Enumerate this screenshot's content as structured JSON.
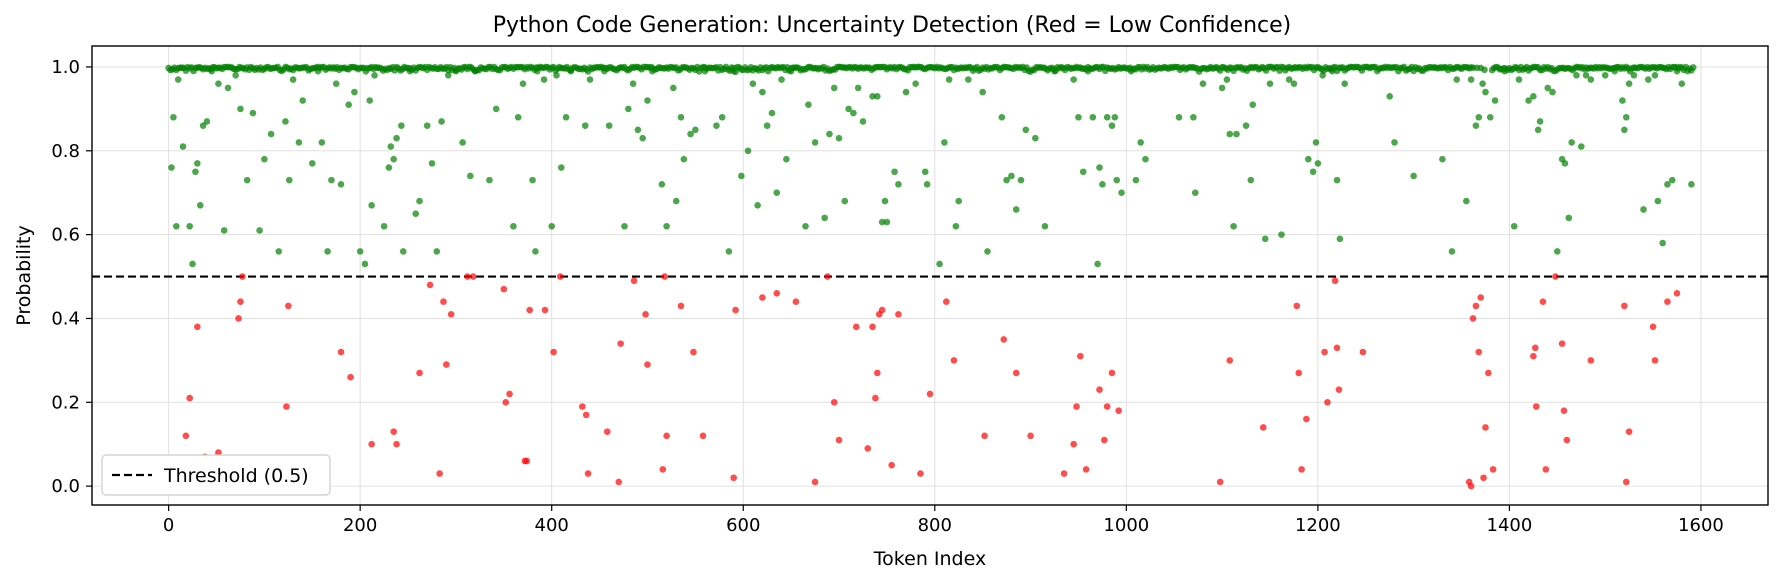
{
  "chart_data": {
    "type": "scatter",
    "title": "Python Code Generation: Uncertainty Detection (Red = Low Confidence)",
    "xlabel": "Token Index",
    "ylabel": "Probability",
    "xlim": [
      -80,
      1670
    ],
    "ylim": [
      -0.045,
      1.05
    ],
    "x_ticks": [
      0,
      200,
      400,
      600,
      800,
      1000,
      1200,
      1400,
      1600
    ],
    "y_ticks": [
      0.0,
      0.2,
      0.4,
      0.6,
      0.8,
      1.0
    ],
    "grid": true,
    "legend_position": "lower-left",
    "threshold": {
      "value": 0.5,
      "label": "Threshold (0.5)",
      "color": "#000000",
      "style": "dashed"
    },
    "colors": {
      "high_confidence": "#008000",
      "low_confidence": "#ff0000"
    },
    "n_tokens": 1593,
    "high_confidence_points": [
      [
        3,
        0.76
      ],
      [
        5,
        0.88
      ],
      [
        8,
        0.62
      ],
      [
        10,
        0.97
      ],
      [
        15,
        0.81
      ],
      [
        22,
        0.62
      ],
      [
        25,
        0.53
      ],
      [
        28,
        0.75
      ],
      [
        30,
        0.77
      ],
      [
        33,
        0.67
      ],
      [
        36,
        0.86
      ],
      [
        40,
        0.87
      ],
      [
        45,
        0.99
      ],
      [
        52,
        0.96
      ],
      [
        58,
        0.61
      ],
      [
        62,
        0.95
      ],
      [
        70,
        0.98
      ],
      [
        75,
        0.9
      ],
      [
        82,
        0.73
      ],
      [
        88,
        0.89
      ],
      [
        95,
        0.61
      ],
      [
        100,
        0.78
      ],
      [
        107,
        0.84
      ],
      [
        115,
        0.56
      ],
      [
        122,
        0.87
      ],
      [
        126,
        0.73
      ],
      [
        130,
        0.97
      ],
      [
        136,
        0.82
      ],
      [
        140,
        0.92
      ],
      [
        150,
        0.77
      ],
      [
        156,
        0.99
      ],
      [
        160,
        0.82
      ],
      [
        166,
        0.56
      ],
      [
        170,
        0.73
      ],
      [
        175,
        0.96
      ],
      [
        180,
        0.72
      ],
      [
        188,
        0.91
      ],
      [
        194,
        0.94
      ],
      [
        200,
        0.56
      ],
      [
        205,
        0.53
      ],
      [
        210,
        0.92
      ],
      [
        212,
        0.67
      ],
      [
        215,
        0.98
      ],
      [
        225,
        0.62
      ],
      [
        230,
        0.76
      ],
      [
        232,
        0.81
      ],
      [
        235,
        0.78
      ],
      [
        238,
        0.83
      ],
      [
        243,
        0.86
      ],
      [
        245,
        0.56
      ],
      [
        252,
        0.99
      ],
      [
        258,
        0.65
      ],
      [
        262,
        0.68
      ],
      [
        270,
        0.86
      ],
      [
        275,
        0.77
      ],
      [
        280,
        0.56
      ],
      [
        285,
        0.87
      ],
      [
        292,
        0.98
      ],
      [
        300,
        0.99
      ],
      [
        307,
        0.82
      ],
      [
        315,
        0.74
      ],
      [
        320,
        0.99
      ],
      [
        335,
        0.73
      ],
      [
        342,
        0.9
      ],
      [
        360,
        0.62
      ],
      [
        365,
        0.88
      ],
      [
        370,
        0.96
      ],
      [
        380,
        0.73
      ],
      [
        383,
        0.56
      ],
      [
        385,
        0.99
      ],
      [
        392,
        0.97
      ],
      [
        400,
        0.62
      ],
      [
        405,
        0.98
      ],
      [
        410,
        0.76
      ],
      [
        415,
        0.88
      ],
      [
        420,
        0.99
      ],
      [
        435,
        0.86
      ],
      [
        440,
        0.97
      ],
      [
        455,
        0.99
      ],
      [
        460,
        0.86
      ],
      [
        476,
        0.62
      ],
      [
        480,
        0.9
      ],
      [
        485,
        0.96
      ],
      [
        490,
        0.85
      ],
      [
        495,
        0.83
      ],
      [
        500,
        0.92
      ],
      [
        505,
        0.99
      ],
      [
        515,
        0.72
      ],
      [
        520,
        0.62
      ],
      [
        527,
        0.95
      ],
      [
        530,
        0.68
      ],
      [
        535,
        0.88
      ],
      [
        538,
        0.78
      ],
      [
        545,
        0.84
      ],
      [
        550,
        0.85
      ],
      [
        560,
        0.99
      ],
      [
        572,
        0.86
      ],
      [
        578,
        0.88
      ],
      [
        585,
        0.56
      ],
      [
        590,
        0.99
      ],
      [
        598,
        0.74
      ],
      [
        605,
        0.8
      ],
      [
        610,
        0.96
      ],
      [
        615,
        0.67
      ],
      [
        620,
        0.94
      ],
      [
        625,
        0.86
      ],
      [
        630,
        0.89
      ],
      [
        635,
        0.7
      ],
      [
        640,
        0.97
      ],
      [
        645,
        0.78
      ],
      [
        650,
        0.99
      ],
      [
        665,
        0.62
      ],
      [
        668,
        0.91
      ],
      [
        675,
        0.82
      ],
      [
        685,
        0.64
      ],
      [
        690,
        0.84
      ],
      [
        695,
        0.95
      ],
      [
        700,
        0.83
      ],
      [
        706,
        0.68
      ],
      [
        710,
        0.9
      ],
      [
        715,
        0.89
      ],
      [
        720,
        0.95
      ],
      [
        725,
        0.87
      ],
      [
        735,
        0.93
      ],
      [
        740,
        0.93
      ],
      [
        745,
        0.63
      ],
      [
        748,
        0.68
      ],
      [
        750,
        0.63
      ],
      [
        758,
        0.75
      ],
      [
        762,
        0.72
      ],
      [
        770,
        0.94
      ],
      [
        780,
        0.96
      ],
      [
        790,
        0.75
      ],
      [
        792,
        0.72
      ],
      [
        805,
        0.53
      ],
      [
        810,
        0.82
      ],
      [
        815,
        0.97
      ],
      [
        822,
        0.62
      ],
      [
        825,
        0.68
      ],
      [
        835,
        0.97
      ],
      [
        850,
        0.94
      ],
      [
        855,
        0.56
      ],
      [
        870,
        0.88
      ],
      [
        875,
        0.73
      ],
      [
        880,
        0.74
      ],
      [
        885,
        0.66
      ],
      [
        890,
        0.73
      ],
      [
        895,
        0.85
      ],
      [
        905,
        0.83
      ],
      [
        915,
        0.62
      ],
      [
        925,
        0.99
      ],
      [
        945,
        0.97
      ],
      [
        950,
        0.88
      ],
      [
        955,
        0.75
      ],
      [
        960,
        0.99
      ],
      [
        965,
        0.88
      ],
      [
        970,
        0.53
      ],
      [
        972,
        0.76
      ],
      [
        975,
        0.72
      ],
      [
        980,
        0.88
      ],
      [
        985,
        0.86
      ],
      [
        988,
        0.88
      ],
      [
        990,
        0.73
      ],
      [
        995,
        0.7
      ],
      [
        1005,
        0.99
      ],
      [
        1010,
        0.73
      ],
      [
        1015,
        0.82
      ],
      [
        1020,
        0.78
      ],
      [
        1055,
        0.88
      ],
      [
        1070,
        0.88
      ],
      [
        1072,
        0.7
      ],
      [
        1080,
        0.96
      ],
      [
        1100,
        0.95
      ],
      [
        1105,
        0.97
      ],
      [
        1108,
        0.84
      ],
      [
        1112,
        0.62
      ],
      [
        1115,
        0.84
      ],
      [
        1125,
        0.86
      ],
      [
        1130,
        0.73
      ],
      [
        1132,
        0.91
      ],
      [
        1145,
        0.59
      ],
      [
        1150,
        0.96
      ],
      [
        1162,
        0.6
      ],
      [
        1170,
        0.97
      ],
      [
        1175,
        0.96
      ],
      [
        1190,
        0.78
      ],
      [
        1195,
        0.75
      ],
      [
        1198,
        0.82
      ],
      [
        1200,
        0.77
      ],
      [
        1205,
        0.98
      ],
      [
        1215,
        0.99
      ],
      [
        1220,
        0.73
      ],
      [
        1223,
        0.59
      ],
      [
        1228,
        0.96
      ],
      [
        1275,
        0.93
      ],
      [
        1280,
        0.82
      ],
      [
        1300,
        0.74
      ],
      [
        1330,
        0.78
      ],
      [
        1340,
        0.56
      ],
      [
        1345,
        0.97
      ],
      [
        1355,
        0.68
      ],
      [
        1360,
        0.97
      ],
      [
        1365,
        0.86
      ],
      [
        1368,
        0.88
      ],
      [
        1372,
        0.96
      ],
      [
        1375,
        0.94
      ],
      [
        1380,
        0.88
      ],
      [
        1385,
        0.92
      ],
      [
        1395,
        0.99
      ],
      [
        1405,
        0.62
      ],
      [
        1410,
        0.97
      ],
      [
        1420,
        0.92
      ],
      [
        1425,
        0.93
      ],
      [
        1430,
        0.85
      ],
      [
        1432,
        0.87
      ],
      [
        1440,
        0.95
      ],
      [
        1445,
        0.94
      ],
      [
        1450,
        0.56
      ],
      [
        1455,
        0.78
      ],
      [
        1458,
        0.77
      ],
      [
        1462,
        0.64
      ],
      [
        1465,
        0.82
      ],
      [
        1470,
        0.98
      ],
      [
        1475,
        0.81
      ],
      [
        1480,
        0.98
      ],
      [
        1485,
        0.97
      ],
      [
        1500,
        0.98
      ],
      [
        1510,
        0.99
      ],
      [
        1518,
        0.92
      ],
      [
        1520,
        0.85
      ],
      [
        1522,
        0.88
      ],
      [
        1525,
        0.96
      ],
      [
        1530,
        0.98
      ],
      [
        1540,
        0.66
      ],
      [
        1545,
        0.97
      ],
      [
        1552,
        0.98
      ],
      [
        1555,
        0.68
      ],
      [
        1560,
        0.58
      ],
      [
        1565,
        0.72
      ],
      [
        1570,
        0.73
      ],
      [
        1575,
        0.99
      ],
      [
        1580,
        0.96
      ],
      [
        1590,
        0.72
      ]
    ],
    "low_confidence_points": [
      [
        8,
        0.01
      ],
      [
        18,
        0.12
      ],
      [
        22,
        0.21
      ],
      [
        30,
        0.38
      ],
      [
        38,
        0.07
      ],
      [
        52,
        0.08
      ],
      [
        65,
        0.04
      ],
      [
        73,
        0.4
      ],
      [
        75,
        0.44
      ],
      [
        77,
        0.5
      ],
      [
        123,
        0.19
      ],
      [
        125,
        0.43
      ],
      [
        180,
        0.32
      ],
      [
        190,
        0.26
      ],
      [
        212,
        0.1
      ],
      [
        235,
        0.13
      ],
      [
        238,
        0.1
      ],
      [
        262,
        0.27
      ],
      [
        273,
        0.48
      ],
      [
        283,
        0.03
      ],
      [
        287,
        0.44
      ],
      [
        290,
        0.29
      ],
      [
        295,
        0.41
      ],
      [
        312,
        0.5
      ],
      [
        318,
        0.5
      ],
      [
        350,
        0.47
      ],
      [
        352,
        0.2
      ],
      [
        356,
        0.22
      ],
      [
        372,
        0.06
      ],
      [
        374,
        0.06
      ],
      [
        377,
        0.42
      ],
      [
        393,
        0.42
      ],
      [
        402,
        0.32
      ],
      [
        409,
        0.5
      ],
      [
        432,
        0.19
      ],
      [
        436,
        0.17
      ],
      [
        438,
        0.03
      ],
      [
        458,
        0.13
      ],
      [
        470,
        0.01
      ],
      [
        472,
        0.34
      ],
      [
        486,
        0.49
      ],
      [
        498,
        0.41
      ],
      [
        500,
        0.29
      ],
      [
        516,
        0.04
      ],
      [
        518,
        0.5
      ],
      [
        520,
        0.12
      ],
      [
        535,
        0.43
      ],
      [
        548,
        0.32
      ],
      [
        558,
        0.12
      ],
      [
        590,
        0.02
      ],
      [
        592,
        0.42
      ],
      [
        620,
        0.45
      ],
      [
        635,
        0.46
      ],
      [
        655,
        0.44
      ],
      [
        675,
        0.01
      ],
      [
        688,
        0.5
      ],
      [
        695,
        0.2
      ],
      [
        700,
        0.11
      ],
      [
        718,
        0.38
      ],
      [
        730,
        0.09
      ],
      [
        735,
        0.38
      ],
      [
        738,
        0.21
      ],
      [
        740,
        0.27
      ],
      [
        742,
        0.41
      ],
      [
        745,
        0.42
      ],
      [
        755,
        0.05
      ],
      [
        762,
        0.41
      ],
      [
        785,
        0.03
      ],
      [
        795,
        0.22
      ],
      [
        812,
        0.44
      ],
      [
        820,
        0.3
      ],
      [
        852,
        0.12
      ],
      [
        872,
        0.35
      ],
      [
        885,
        0.27
      ],
      [
        900,
        0.12
      ],
      [
        935,
        0.03
      ],
      [
        945,
        0.1
      ],
      [
        948,
        0.19
      ],
      [
        952,
        0.31
      ],
      [
        958,
        0.04
      ],
      [
        972,
        0.23
      ],
      [
        977,
        0.11
      ],
      [
        980,
        0.19
      ],
      [
        985,
        0.27
      ],
      [
        992,
        0.18
      ],
      [
        1098,
        0.01
      ],
      [
        1108,
        0.3
      ],
      [
        1143,
        0.14
      ],
      [
        1178,
        0.43
      ],
      [
        1180,
        0.27
      ],
      [
        1183,
        0.04
      ],
      [
        1188,
        0.16
      ],
      [
        1207,
        0.32
      ],
      [
        1210,
        0.2
      ],
      [
        1218,
        0.49
      ],
      [
        1220,
        0.33
      ],
      [
        1222,
        0.23
      ],
      [
        1247,
        0.32
      ],
      [
        1358,
        0.01
      ],
      [
        1360,
        0.0
      ],
      [
        1362,
        0.4
      ],
      [
        1365,
        0.43
      ],
      [
        1368,
        0.32
      ],
      [
        1370,
        0.45
      ],
      [
        1373,
        0.02
      ],
      [
        1375,
        0.14
      ],
      [
        1378,
        0.27
      ],
      [
        1383,
        0.04
      ],
      [
        1425,
        0.31
      ],
      [
        1427,
        0.33
      ],
      [
        1428,
        0.19
      ],
      [
        1435,
        0.44
      ],
      [
        1438,
        0.04
      ],
      [
        1448,
        0.5
      ],
      [
        1455,
        0.34
      ],
      [
        1457,
        0.18
      ],
      [
        1460,
        0.11
      ],
      [
        1485,
        0.3
      ],
      [
        1520,
        0.43
      ],
      [
        1522,
        0.01
      ],
      [
        1525,
        0.13
      ],
      [
        1550,
        0.38
      ],
      [
        1552,
        0.3
      ],
      [
        1565,
        0.44
      ],
      [
        1575,
        0.46
      ]
    ]
  }
}
